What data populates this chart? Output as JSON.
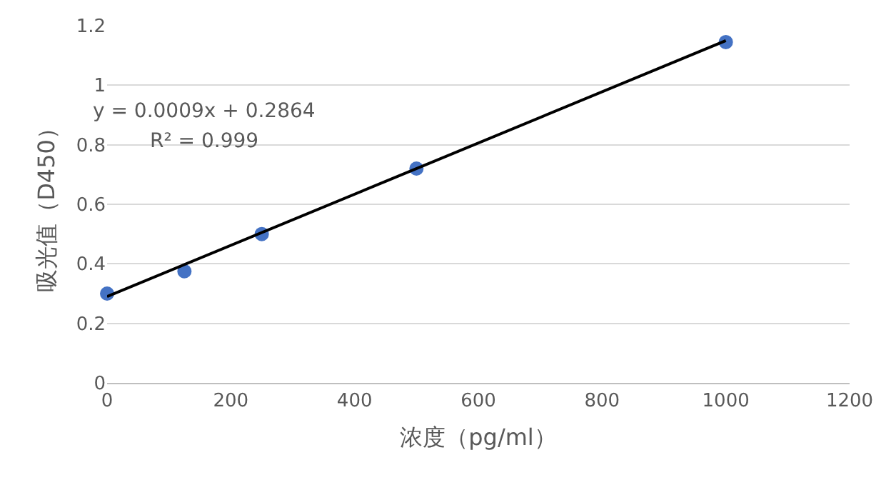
{
  "chart_data": {
    "type": "scatter",
    "xlabel": "浓度（pg/ml）",
    "ylabel": "吸光值（D450）",
    "annotations": [
      "y = 0.0009x + 0.2864",
      "R² = 0.999"
    ],
    "series": [
      {
        "color": "#4472c4",
        "marker": "circle",
        "x": [
          0,
          125,
          250,
          500,
          1000
        ],
        "values": [
          0.3,
          0.375,
          0.5,
          0.72,
          1.145
        ]
      },
      {
        "type": "line",
        "marker": "none",
        "color": "#000000",
        "x": [
          0,
          1000
        ],
        "values": [
          0.29,
          1.15
        ]
      }
    ],
    "xlim": [
      0,
      1200
    ],
    "xticks": [
      0,
      200,
      400,
      600,
      800,
      1000,
      1200
    ],
    "ylim": [
      0,
      1.2
    ],
    "yticks": [
      0,
      0.2,
      0.4,
      0.6,
      0.8,
      1,
      1.2
    ],
    "grid": "y"
  }
}
